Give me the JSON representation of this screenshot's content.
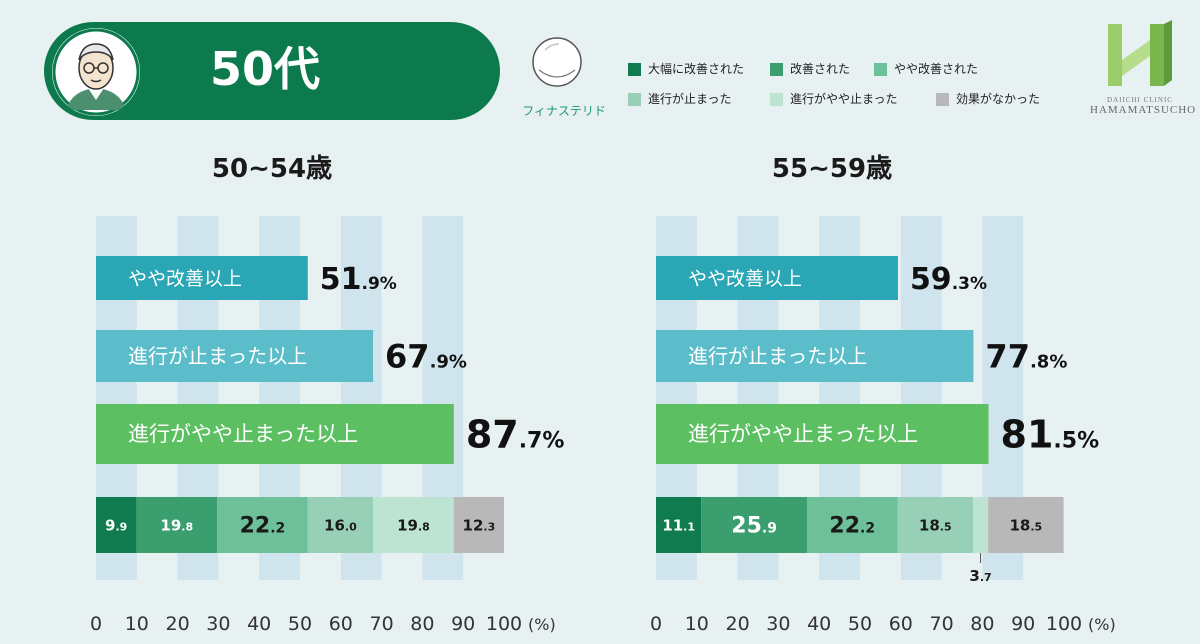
{
  "header": {
    "title": "50代"
  },
  "product": {
    "label": "フィナステリド"
  },
  "legend": [
    {
      "label": "大幅に改善された",
      "color": "#0f7b4e"
    },
    {
      "label": "改善された",
      "color": "#3a9e6f"
    },
    {
      "label": "やや改善された",
      "color": "#6ec09a"
    },
    {
      "label": "進行が止まった",
      "color": "#97d0b6"
    },
    {
      "label": "進行がやや止まった",
      "color": "#bde3d2"
    },
    {
      "label": "効果がなかった",
      "color": "#b8b8b8"
    }
  ],
  "logo": {
    "top": "DAIICHI CLINIC",
    "bottom": "HAMAMATSUCHO"
  },
  "chart_data": [
    {
      "type": "bar",
      "title": "50~54歳",
      "xlim": [
        0,
        100
      ],
      "x_ticks": [
        "0",
        "10",
        "20",
        "30",
        "40",
        "50",
        "60",
        "70",
        "80",
        "90",
        "100"
      ],
      "x_unit": "(%)",
      "summary_bars": [
        {
          "label": "やや改善以上",
          "value": 51.9,
          "color": "#2aa6b5"
        },
        {
          "label": "進行が止まった以上",
          "value": 67.9,
          "color": "#5bbcca"
        },
        {
          "label": "進行がやや止まった以上",
          "value": 87.7,
          "color": "#5cc062"
        }
      ],
      "stacked": [
        9.9,
        19.8,
        22.2,
        16.0,
        19.8,
        12.3
      ]
    },
    {
      "type": "bar",
      "title": "55~59歳",
      "xlim": [
        0,
        100
      ],
      "x_ticks": [
        "0",
        "10",
        "20",
        "30",
        "40",
        "50",
        "60",
        "70",
        "80",
        "90",
        "100"
      ],
      "x_unit": "(%)",
      "summary_bars": [
        {
          "label": "やや改善以上",
          "value": 59.3,
          "color": "#2aa6b5"
        },
        {
          "label": "進行が止まった以上",
          "value": 77.8,
          "color": "#5bbcca"
        },
        {
          "label": "進行がやや止まった以上",
          "value": 81.5,
          "color": "#5cc062"
        }
      ],
      "stacked": [
        11.1,
        25.9,
        22.2,
        18.5,
        3.7,
        18.5
      ]
    }
  ]
}
